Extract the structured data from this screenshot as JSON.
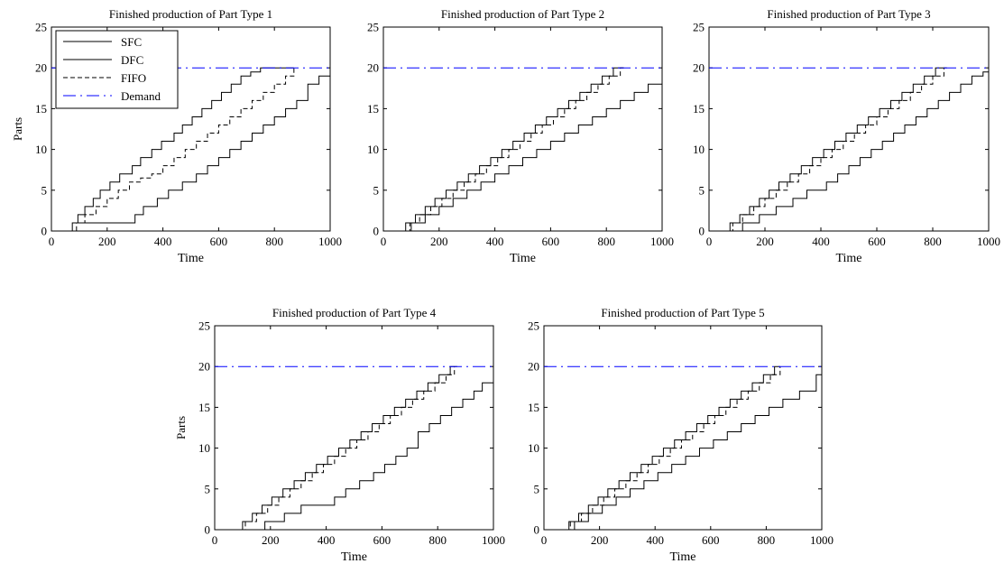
{
  "chart_data": [
    {
      "type": "line",
      "title": "Finished production of Part Type 1",
      "xlabel": "Time",
      "ylabel": "Parts",
      "xlim": [
        0,
        1000
      ],
      "ylim": [
        0,
        25
      ],
      "xticks": [
        0,
        200,
        400,
        600,
        800,
        1000
      ],
      "yticks": [
        0,
        5,
        10,
        15,
        20,
        25
      ],
      "grid": false,
      "legend": "top-left",
      "series": [
        {
          "name": "SFC",
          "style": "solid",
          "x": [
            60,
            75,
            95,
            120,
            150,
            175,
            210,
            245,
            290,
            320,
            360,
            395,
            440,
            470,
            505,
            540,
            575,
            610,
            645,
            680,
            715,
            750,
            790,
            820,
            855,
            870
          ],
          "y": [
            0,
            1,
            2,
            3,
            4,
            5,
            6,
            7,
            8,
            9,
            10,
            11,
            12,
            13,
            14,
            15,
            16,
            17,
            18,
            19,
            19.5,
            20,
            20,
            20,
            20,
            20
          ]
        },
        {
          "name": "DFC",
          "style": "solid",
          "x": [
            100,
            150,
            300,
            330,
            380,
            420,
            470,
            520,
            560,
            600,
            640,
            680,
            720,
            760,
            800,
            840,
            880,
            920,
            960,
            1000
          ],
          "y": [
            1,
            1,
            2,
            3,
            4,
            5,
            6,
            7,
            8,
            9,
            10,
            11,
            12,
            13,
            14,
            15,
            16,
            18,
            19,
            20
          ]
        },
        {
          "name": "FIFO",
          "style": "dashed",
          "x": [
            65,
            90,
            120,
            160,
            200,
            240,
            280,
            320,
            360,
            400,
            440,
            480,
            520,
            560,
            600,
            640,
            680,
            720,
            760,
            800,
            840,
            870
          ],
          "y": [
            0,
            1,
            2,
            3,
            4,
            5,
            6,
            6.5,
            7,
            8,
            9,
            10,
            11,
            12,
            13,
            14,
            15,
            16,
            17,
            18,
            19,
            20
          ]
        },
        {
          "name": "Demand",
          "style": "dashdot",
          "color": "#0000ff",
          "x": [
            0,
            1000
          ],
          "y": [
            20,
            20
          ]
        }
      ]
    },
    {
      "type": "line",
      "title": "Finished production of Part Type 2",
      "xlabel": "Time",
      "ylabel": "",
      "xlim": [
        0,
        1000
      ],
      "ylim": [
        0,
        25
      ],
      "xticks": [
        0,
        200,
        400,
        600,
        800,
        1000
      ],
      "yticks": [
        0,
        5,
        10,
        15,
        20,
        25
      ],
      "grid": false,
      "series": [
        {
          "name": "SFC",
          "style": "solid",
          "x": [
            50,
            80,
            115,
            150,
            185,
            225,
            265,
            305,
            345,
            385,
            425,
            465,
            505,
            545,
            585,
            625,
            665,
            705,
            745,
            785,
            825,
            860
          ],
          "y": [
            0,
            1,
            2,
            3,
            4,
            5,
            6,
            7,
            8,
            9,
            10,
            11,
            12,
            13,
            14,
            15,
            16,
            17,
            18,
            19,
            20,
            20
          ]
        },
        {
          "name": "DFC",
          "style": "solid",
          "x": [
            50,
            100,
            150,
            200,
            250,
            300,
            350,
            400,
            450,
            500,
            550,
            600,
            650,
            700,
            750,
            800,
            850,
            900,
            950,
            1000
          ],
          "y": [
            0,
            1,
            2,
            3,
            4,
            5,
            6,
            7,
            8,
            9,
            10,
            11,
            12,
            13,
            14,
            15,
            16,
            17,
            18,
            20
          ]
        },
        {
          "name": "FIFO",
          "style": "dashed",
          "x": [
            60,
            95,
            130,
            170,
            210,
            250,
            290,
            330,
            370,
            410,
            450,
            490,
            530,
            570,
            610,
            650,
            690,
            730,
            770,
            810,
            850,
            870
          ],
          "y": [
            0,
            1,
            2,
            3,
            4,
            5,
            6,
            7,
            8,
            9,
            10,
            11,
            12,
            13,
            14,
            15,
            16,
            17,
            18,
            19,
            20,
            20
          ]
        },
        {
          "name": "Demand",
          "style": "dashdot",
          "color": "#0000ff",
          "x": [
            0,
            1000
          ],
          "y": [
            20,
            20
          ]
        }
      ]
    },
    {
      "type": "line",
      "title": "Finished production of Part Type 3",
      "xlabel": "Time",
      "ylabel": "",
      "xlim": [
        0,
        1000
      ],
      "ylim": [
        0,
        25
      ],
      "xticks": [
        0,
        200,
        400,
        600,
        800,
        1000
      ],
      "yticks": [
        0,
        5,
        10,
        15,
        20,
        25
      ],
      "grid": false,
      "series": [
        {
          "name": "SFC",
          "style": "solid",
          "x": [
            40,
            75,
            110,
            145,
            180,
            215,
            250,
            290,
            330,
            370,
            410,
            450,
            490,
            530,
            570,
            610,
            650,
            690,
            730,
            770,
            810,
            840
          ],
          "y": [
            0,
            1,
            2,
            3,
            4,
            5,
            6,
            7,
            8,
            9,
            10,
            11,
            12,
            13,
            14,
            15,
            16,
            17,
            18,
            19,
            20,
            20
          ]
        },
        {
          "name": "DFC",
          "style": "solid",
          "x": [
            45,
            120,
            180,
            240,
            300,
            350,
            420,
            460,
            500,
            540,
            580,
            620,
            660,
            700,
            740,
            780,
            820,
            860,
            900,
            940,
            980,
            1000
          ],
          "y": [
            0,
            1,
            2,
            3,
            4,
            5,
            6,
            7,
            8,
            9,
            10,
            11,
            12,
            13,
            14,
            15,
            16,
            17,
            18,
            19,
            19.5,
            20
          ]
        },
        {
          "name": "FIFO",
          "style": "dashed",
          "x": [
            50,
            85,
            120,
            160,
            200,
            240,
            280,
            320,
            360,
            400,
            440,
            480,
            520,
            560,
            600,
            640,
            680,
            720,
            760,
            800,
            840,
            860
          ],
          "y": [
            0,
            1,
            2,
            3,
            4,
            5,
            6,
            7,
            8,
            9,
            10,
            11,
            12,
            13,
            14,
            15,
            16,
            17,
            18,
            19,
            20,
            20
          ]
        },
        {
          "name": "Demand",
          "style": "dashdot",
          "color": "#0000ff",
          "x": [
            0,
            1000
          ],
          "y": [
            20,
            20
          ]
        }
      ]
    },
    {
      "type": "line",
      "title": "Finished production of Part Type 4",
      "xlabel": "Time",
      "ylabel": "Parts",
      "xlim": [
        0,
        1000
      ],
      "ylim": [
        0,
        25
      ],
      "xticks": [
        0,
        200,
        400,
        600,
        800,
        1000
      ],
      "yticks": [
        0,
        5,
        10,
        15,
        20,
        25
      ],
      "grid": false,
      "series": [
        {
          "name": "SFC",
          "style": "solid",
          "x": [
            60,
            100,
            135,
            170,
            205,
            245,
            285,
            325,
            365,
            405,
            445,
            485,
            525,
            565,
            605,
            645,
            685,
            725,
            765,
            805,
            845,
            870
          ],
          "y": [
            0,
            1,
            2,
            3,
            4,
            5,
            6,
            7,
            8,
            9,
            10,
            11,
            12,
            13,
            14,
            15,
            16,
            17,
            18,
            19,
            20,
            20
          ]
        },
        {
          "name": "DFC",
          "style": "solid",
          "x": [
            60,
            180,
            250,
            310,
            430,
            470,
            520,
            570,
            610,
            650,
            690,
            730,
            770,
            810,
            850,
            890,
            930,
            960,
            1000
          ],
          "y": [
            0,
            1,
            2,
            3,
            4,
            5,
            6,
            7,
            8,
            9,
            10,
            12,
            13,
            14,
            15,
            16,
            17,
            18,
            20
          ]
        },
        {
          "name": "FIFO",
          "style": "dashed",
          "x": [
            70,
            110,
            150,
            190,
            230,
            270,
            310,
            350,
            390,
            430,
            470,
            510,
            550,
            590,
            630,
            670,
            710,
            750,
            790,
            830,
            860
          ],
          "y": [
            0,
            1,
            2,
            3,
            4,
            5,
            6,
            7,
            8,
            9,
            10,
            11,
            12,
            13,
            14,
            15,
            16,
            17,
            18,
            19,
            20
          ]
        },
        {
          "name": "Demand",
          "style": "dashdot",
          "color": "#0000ff",
          "x": [
            0,
            1000
          ],
          "y": [
            20,
            20
          ]
        }
      ]
    },
    {
      "type": "line",
      "title": "Finished production of Part Type 5",
      "xlabel": "Time",
      "ylabel": "",
      "xlim": [
        0,
        1000
      ],
      "ylim": [
        0,
        25
      ],
      "xticks": [
        0,
        200,
        400,
        600,
        800,
        1000
      ],
      "yticks": [
        0,
        5,
        10,
        15,
        20,
        25
      ],
      "grid": false,
      "series": [
        {
          "name": "SFC",
          "style": "solid",
          "x": [
            50,
            90,
            125,
            160,
            195,
            230,
            270,
            310,
            350,
            390,
            430,
            470,
            510,
            550,
            590,
            630,
            670,
            710,
            750,
            790,
            830,
            850
          ],
          "y": [
            0,
            1,
            2,
            3,
            4,
            5,
            6,
            7,
            8,
            9,
            10,
            11,
            12,
            13,
            14,
            15,
            16,
            17,
            18,
            19,
            20,
            20
          ]
        },
        {
          "name": "DFC",
          "style": "solid",
          "x": [
            60,
            110,
            160,
            210,
            260,
            310,
            360,
            410,
            460,
            510,
            560,
            610,
            660,
            710,
            760,
            810,
            860,
            920,
            980,
            1000
          ],
          "y": [
            0,
            1,
            2,
            3,
            4,
            5,
            6,
            7,
            8,
            9,
            10,
            11,
            12,
            13,
            14,
            15,
            16,
            17,
            19,
            20
          ]
        },
        {
          "name": "FIFO",
          "style": "dashed",
          "x": [
            55,
            95,
            135,
            175,
            215,
            255,
            295,
            335,
            375,
            415,
            455,
            495,
            535,
            575,
            615,
            655,
            695,
            735,
            775,
            815,
            850
          ],
          "y": [
            0,
            1,
            2,
            3,
            4,
            5,
            6,
            7,
            8,
            9,
            10,
            11,
            12,
            13,
            14,
            15,
            16,
            17,
            18,
            19,
            20
          ]
        },
        {
          "name": "Demand",
          "style": "dashdot",
          "color": "#0000ff",
          "x": [
            0,
            1000
          ],
          "y": [
            20,
            20
          ]
        }
      ]
    }
  ]
}
